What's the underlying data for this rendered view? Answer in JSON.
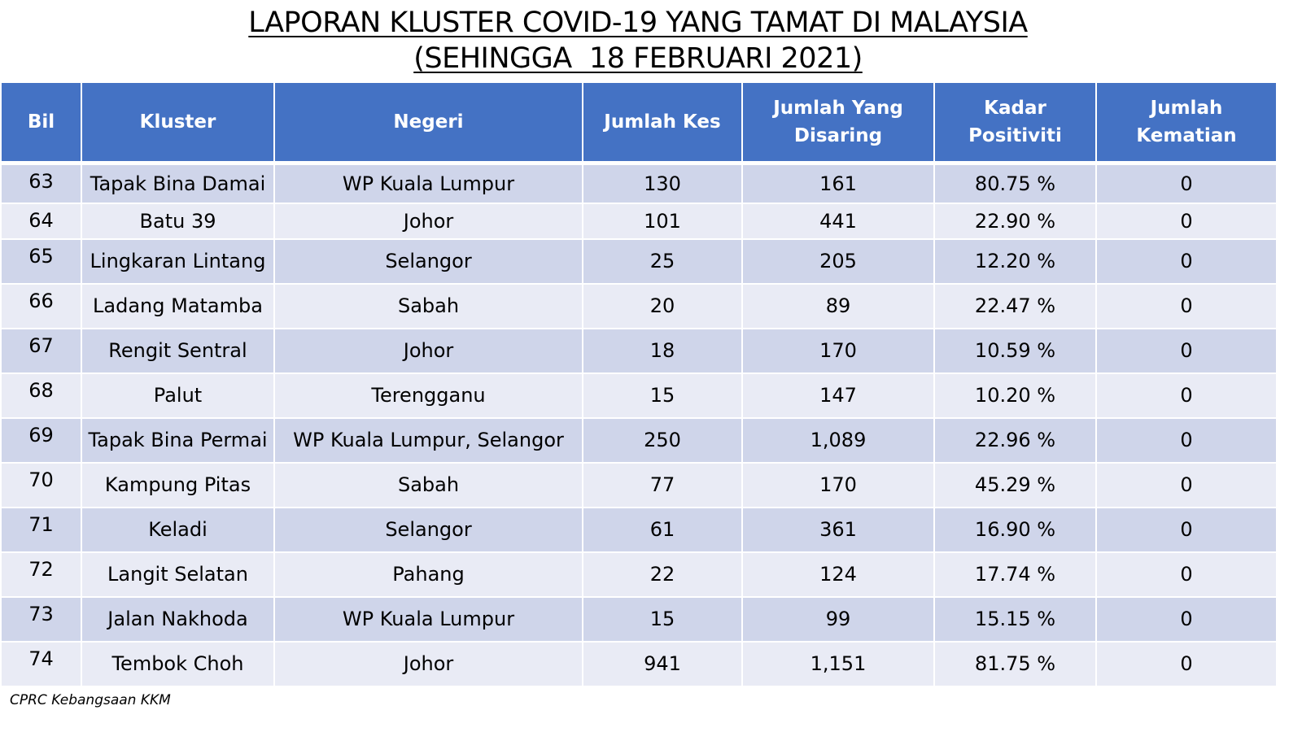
{
  "title": {
    "line1": "LAPORAN KLUSTER COVID-19 YANG TAMAT DI MALAYSIA",
    "line2": "(SEHINGGA  18 FEBRUARI 2021)"
  },
  "colors": {
    "header_bg": "#4472c4",
    "row_dark": "#cfd5ea",
    "row_light": "#e9ebf5"
  },
  "table": {
    "headers": {
      "bil": "Bil",
      "kluster": "Kluster",
      "negeri": "Negeri",
      "jumlah_kes": "Jumlah Kes",
      "jumlah_disaring": "Jumlah Yang Disaring",
      "kadar_positiviti": "Kadar Positiviti",
      "jumlah_kematian": "Jumlah Kematian"
    },
    "rows": [
      {
        "bil": "63",
        "kluster": "Tapak Bina Damai",
        "negeri": "WP Kuala Lumpur",
        "jumlah_kes": "130",
        "jumlah_disaring": "161",
        "kadar_positiviti": "80.75 %",
        "jumlah_kematian": "0"
      },
      {
        "bil": "64",
        "kluster": "Batu 39",
        "negeri": "Johor",
        "jumlah_kes": "101",
        "jumlah_disaring": "441",
        "kadar_positiviti": "22.90 %",
        "jumlah_kematian": "0"
      },
      {
        "bil": "65",
        "kluster": "Lingkaran Lintang",
        "negeri": "Selangor",
        "jumlah_kes": "25",
        "jumlah_disaring": "205",
        "kadar_positiviti": "12.20 %",
        "jumlah_kematian": "0"
      },
      {
        "bil": "66",
        "kluster": "Ladang Matamba",
        "negeri": "Sabah",
        "jumlah_kes": "20",
        "jumlah_disaring": "89",
        "kadar_positiviti": "22.47 %",
        "jumlah_kematian": "0"
      },
      {
        "bil": "67",
        "kluster": "Rengit Sentral",
        "negeri": "Johor",
        "jumlah_kes": "18",
        "jumlah_disaring": "170",
        "kadar_positiviti": "10.59 %",
        "jumlah_kematian": "0"
      },
      {
        "bil": "68",
        "kluster": "Palut",
        "negeri": "Terengganu",
        "jumlah_kes": "15",
        "jumlah_disaring": "147",
        "kadar_positiviti": "10.20 %",
        "jumlah_kematian": "0"
      },
      {
        "bil": "69",
        "kluster": "Tapak Bina Permai",
        "negeri": "WP Kuala Lumpur, Selangor",
        "jumlah_kes": "250",
        "jumlah_disaring": "1,089",
        "kadar_positiviti": "22.96 %",
        "jumlah_kematian": "0"
      },
      {
        "bil": "70",
        "kluster": "Kampung Pitas",
        "negeri": "Sabah",
        "jumlah_kes": "77",
        "jumlah_disaring": "170",
        "kadar_positiviti": "45.29 %",
        "jumlah_kematian": "0"
      },
      {
        "bil": "71",
        "kluster": "Keladi",
        "negeri": "Selangor",
        "jumlah_kes": "61",
        "jumlah_disaring": "361",
        "kadar_positiviti": "16.90 %",
        "jumlah_kematian": "0"
      },
      {
        "bil": "72",
        "kluster": "Langit Selatan",
        "negeri": "Pahang",
        "jumlah_kes": "22",
        "jumlah_disaring": "124",
        "kadar_positiviti": "17.74 %",
        "jumlah_kematian": "0"
      },
      {
        "bil": "73",
        "kluster": "Jalan Nakhoda",
        "negeri": "WP Kuala Lumpur",
        "jumlah_kes": "15",
        "jumlah_disaring": "99",
        "kadar_positiviti": "15.15 %",
        "jumlah_kematian": "0"
      },
      {
        "bil": "74",
        "kluster": "Tembok Choh",
        "negeri": "Johor",
        "jumlah_kes": "941",
        "jumlah_disaring": "1,151",
        "kadar_positiviti": "81.75 %",
        "jumlah_kematian": "0"
      }
    ]
  },
  "footer": {
    "source": "CPRC Kebangsaan KKM"
  }
}
